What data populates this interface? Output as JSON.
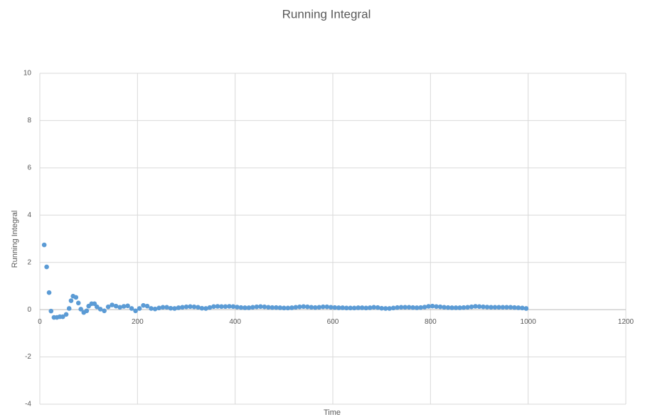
{
  "chart_data": {
    "type": "scatter",
    "title": "Running Integral",
    "x_label": "Time",
    "y_label": "Running Integral",
    "color": "#5b9bd5",
    "grid": true,
    "xlim": [
      0,
      1200
    ],
    "xticks": [
      0,
      200,
      400,
      600,
      800,
      1000,
      1200
    ],
    "ylim": [
      -4,
      10
    ],
    "yticks": [
      -4,
      -2,
      0,
      2,
      4,
      6,
      8,
      10
    ],
    "x": [
      9,
      14,
      19,
      23,
      29,
      35,
      41,
      47,
      54,
      60,
      64,
      68,
      74,
      79,
      84,
      90,
      96,
      100,
      106,
      112,
      117,
      124,
      132,
      140,
      148,
      156,
      164,
      172,
      180,
      188,
      196,
      204,
      212,
      220,
      228,
      236,
      244,
      252,
      260,
      268,
      276,
      284,
      292,
      300,
      308,
      316,
      324,
      332,
      340,
      348,
      356,
      364,
      372,
      380,
      388,
      396,
      404,
      412,
      420,
      428,
      436,
      444,
      452,
      460,
      468,
      476,
      484,
      492,
      500,
      508,
      516,
      524,
      532,
      540,
      548,
      556,
      564,
      572,
      580,
      588,
      596,
      604,
      612,
      620,
      628,
      636,
      644,
      652,
      660,
      668,
      676,
      684,
      692,
      700,
      708,
      716,
      724,
      732,
      740,
      748,
      756,
      764,
      772,
      780,
      788,
      796,
      804,
      812,
      820,
      828,
      836,
      844,
      852,
      860,
      868,
      876,
      884,
      892,
      900,
      908,
      916,
      924,
      932,
      940,
      948,
      956,
      964,
      972,
      980,
      988,
      996
    ],
    "values": [
      2.74,
      1.81,
      0.72,
      -0.06,
      -0.33,
      -0.33,
      -0.3,
      -0.3,
      -0.2,
      0.05,
      0.38,
      0.57,
      0.52,
      0.28,
      0.02,
      -0.12,
      -0.05,
      0.15,
      0.25,
      0.25,
      0.12,
      0.02,
      -0.05,
      0.12,
      0.2,
      0.15,
      0.1,
      0.14,
      0.16,
      0.05,
      -0.05,
      0.05,
      0.18,
      0.15,
      0.05,
      0.03,
      0.07,
      0.1,
      0.1,
      0.06,
      0.05,
      0.08,
      0.1,
      0.12,
      0.13,
      0.12,
      0.1,
      0.06,
      0.05,
      0.09,
      0.13,
      0.14,
      0.13,
      0.13,
      0.14,
      0.13,
      0.11,
      0.09,
      0.08,
      0.08,
      0.1,
      0.12,
      0.13,
      0.12,
      0.1,
      0.09,
      0.09,
      0.08,
      0.07,
      0.07,
      0.08,
      0.1,
      0.12,
      0.13,
      0.12,
      0.1,
      0.09,
      0.1,
      0.12,
      0.12,
      0.1,
      0.09,
      0.08,
      0.08,
      0.07,
      0.07,
      0.07,
      0.08,
      0.08,
      0.07,
      0.08,
      0.1,
      0.09,
      0.06,
      0.05,
      0.05,
      0.07,
      0.09,
      0.1,
      0.1,
      0.1,
      0.09,
      0.08,
      0.09,
      0.11,
      0.14,
      0.15,
      0.13,
      0.12,
      0.1,
      0.09,
      0.08,
      0.08,
      0.08,
      0.09,
      0.1,
      0.12,
      0.14,
      0.13,
      0.12,
      0.11,
      0.1,
      0.1,
      0.1,
      0.1,
      0.1,
      0.1,
      0.09,
      0.08,
      0.07,
      0.05
    ]
  }
}
